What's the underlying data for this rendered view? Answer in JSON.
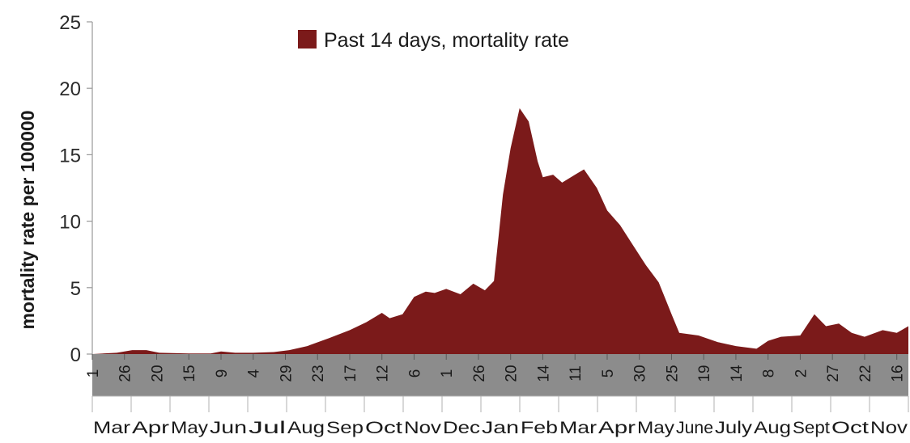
{
  "chart_data": {
    "type": "area",
    "ylabel": "mortality rate per 100000",
    "ylim": [
      0,
      25
    ],
    "yticks": [
      "0",
      "5",
      "10",
      "15",
      "20",
      "25"
    ],
    "legend": {
      "label": "Past 14 days, mortality rate",
      "position": "top-center"
    },
    "series": [
      {
        "name": "Past 14 days, mortality rate",
        "color": "#7b1a1a",
        "points": [
          [
            "2020-03-01",
            0.0
          ],
          [
            "2020-03-20",
            0.1
          ],
          [
            "2020-04-01",
            0.3
          ],
          [
            "2020-04-12",
            0.3
          ],
          [
            "2020-04-22",
            0.1
          ],
          [
            "2020-05-15",
            0.05
          ],
          [
            "2020-06-01",
            0.05
          ],
          [
            "2020-06-09",
            0.2
          ],
          [
            "2020-06-20",
            0.1
          ],
          [
            "2020-07-04",
            0.1
          ],
          [
            "2020-07-20",
            0.15
          ],
          [
            "2020-08-01",
            0.3
          ],
          [
            "2020-08-15",
            0.6
          ],
          [
            "2020-09-01",
            1.2
          ],
          [
            "2020-09-17",
            1.8
          ],
          [
            "2020-09-30",
            2.4
          ],
          [
            "2020-10-12",
            3.1
          ],
          [
            "2020-10-18",
            2.7
          ],
          [
            "2020-10-28",
            3.0
          ],
          [
            "2020-11-06",
            4.3
          ],
          [
            "2020-11-15",
            4.7
          ],
          [
            "2020-11-22",
            4.6
          ],
          [
            "2020-12-01",
            4.9
          ],
          [
            "2020-12-12",
            4.5
          ],
          [
            "2020-12-22",
            5.3
          ],
          [
            "2020-12-31",
            4.8
          ],
          [
            "2021-01-07",
            5.5
          ],
          [
            "2021-01-14",
            12.0
          ],
          [
            "2021-01-20",
            15.5
          ],
          [
            "2021-01-27",
            18.5
          ],
          [
            "2021-02-03",
            17.5
          ],
          [
            "2021-02-10",
            14.5
          ],
          [
            "2021-02-14",
            13.3
          ],
          [
            "2021-02-22",
            13.5
          ],
          [
            "2021-03-01",
            12.9
          ],
          [
            "2021-03-11",
            13.5
          ],
          [
            "2021-03-18",
            13.9
          ],
          [
            "2021-03-28",
            12.5
          ],
          [
            "2021-04-05",
            10.8
          ],
          [
            "2021-04-15",
            9.7
          ],
          [
            "2021-04-25",
            8.2
          ],
          [
            "2021-05-05",
            6.7
          ],
          [
            "2021-05-15",
            5.4
          ],
          [
            "2021-05-25",
            3.0
          ],
          [
            "2021-05-31",
            1.6
          ],
          [
            "2021-06-15",
            1.4
          ],
          [
            "2021-06-30",
            0.9
          ],
          [
            "2021-07-14",
            0.6
          ],
          [
            "2021-07-30",
            0.4
          ],
          [
            "2021-08-08",
            1.0
          ],
          [
            "2021-08-18",
            1.3
          ],
          [
            "2021-09-02",
            1.4
          ],
          [
            "2021-09-13",
            3.0
          ],
          [
            "2021-09-22",
            2.1
          ],
          [
            "2021-10-02",
            2.3
          ],
          [
            "2021-10-12",
            1.6
          ],
          [
            "2021-10-22",
            1.3
          ],
          [
            "2021-11-05",
            1.8
          ],
          [
            "2021-11-16",
            1.6
          ],
          [
            "2021-11-25",
            2.1
          ]
        ]
      }
    ],
    "x_day_labels": [
      [
        "2020-03-01",
        "1"
      ],
      [
        "2020-03-26",
        "26"
      ],
      [
        "2020-04-20",
        "20"
      ],
      [
        "2020-05-15",
        "15"
      ],
      [
        "2020-06-09",
        "9"
      ],
      [
        "2020-07-04",
        "4"
      ],
      [
        "2020-07-29",
        "29"
      ],
      [
        "2020-08-23",
        "23"
      ],
      [
        "2020-09-17",
        "17"
      ],
      [
        "2020-10-12",
        "12"
      ],
      [
        "2020-11-06",
        "6"
      ],
      [
        "2020-12-01",
        "1"
      ],
      [
        "2020-12-26",
        "26"
      ],
      [
        "2021-01-20",
        "20"
      ],
      [
        "2021-02-14",
        "14"
      ],
      [
        "2021-03-11",
        "11"
      ],
      [
        "2021-04-05",
        "5"
      ],
      [
        "2021-04-30",
        "30"
      ],
      [
        "2021-05-25",
        "25"
      ],
      [
        "2021-06-19",
        "19"
      ],
      [
        "2021-07-14",
        "14"
      ],
      [
        "2021-08-08",
        "8"
      ],
      [
        "2021-09-02",
        "2"
      ],
      [
        "2021-09-27",
        "27"
      ],
      [
        "2021-10-22",
        "22"
      ],
      [
        "2021-11-16",
        "16"
      ]
    ],
    "x_month_labels": [
      "Mar",
      "Apr",
      "May",
      "Jun",
      "Jul",
      "Aug",
      "Sep",
      "Oct",
      "Nov",
      "Dec",
      "Jan",
      "Feb",
      "Mar",
      "Apr",
      "May",
      "June",
      "July",
      "Aug",
      "Sept",
      "Oct",
      "Nov"
    ],
    "colors": {
      "area": "#7b1a1a",
      "axis_band": "#8c8c8c",
      "axis_band_line": "#9e9e9e"
    }
  }
}
